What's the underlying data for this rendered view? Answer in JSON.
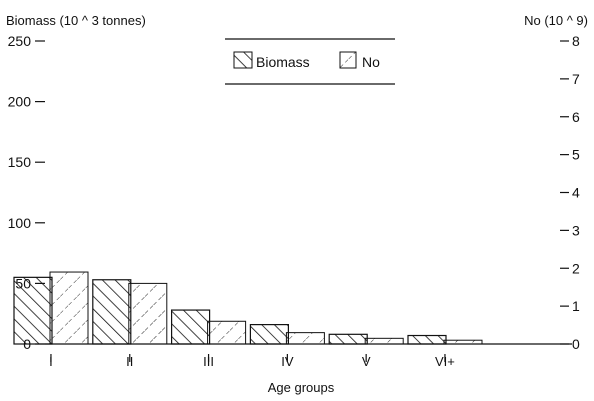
{
  "chart_data": {
    "type": "bar",
    "categories": [
      "I",
      "II",
      "III",
      "IV",
      "V",
      "VI+"
    ],
    "series": [
      {
        "name": "Biomass",
        "axis": "left",
        "hatch": "backslash",
        "values": [
          55,
          53,
          28,
          16,
          8,
          7
        ]
      },
      {
        "name": "No",
        "axis": "right",
        "hatch": "slash",
        "values": [
          1.9,
          1.6,
          0.6,
          0.3,
          0.15,
          0.1
        ]
      }
    ],
    "left_axis": {
      "label": "Biomass (10 ^ 3 tonnes)",
      "range": [
        0,
        250
      ],
      "ticks": [
        "0",
        "50",
        "100",
        "150",
        "200",
        "250"
      ]
    },
    "right_axis": {
      "label": "No (10 ^ 9)",
      "range": [
        0,
        8
      ],
      "ticks": [
        "0",
        "1",
        "2",
        "3",
        "4",
        "5",
        "6",
        "7",
        "8"
      ]
    },
    "xlabel": "Age groups",
    "grid": false,
    "legend": {
      "position": "top-center"
    },
    "colors": {
      "ink": "#111111",
      "background": "#ffffff"
    }
  }
}
